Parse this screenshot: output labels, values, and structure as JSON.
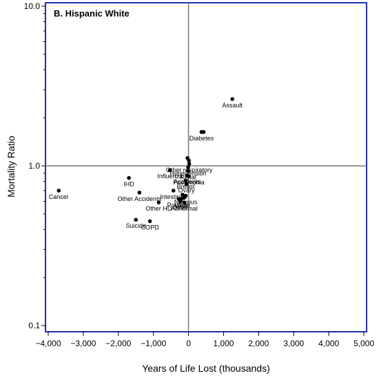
{
  "chart_data": {
    "type": "scatter",
    "title": "B. Hispanic White",
    "xlabel": "Years of Life Lost (thousands)",
    "ylabel": "Mortality Ratio",
    "xlim": [
      -4000,
      5000
    ],
    "ylim": [
      0.1,
      10.0
    ],
    "yscale": "log",
    "xticks": [
      -4000,
      -3000,
      -2000,
      -1000,
      0,
      1000,
      2000,
      3000,
      4000,
      5000
    ],
    "xtick_labels": [
      "−4,000",
      "−3,000",
      "−2,000",
      "−1,000",
      "0",
      "1,000",
      "2,000",
      "3,000",
      "4,000",
      "5,000"
    ],
    "yticks": [
      0.1,
      1.0,
      10.0
    ],
    "ytick_labels": [
      "0.1",
      "1.0",
      "10.0"
    ],
    "reference_lines": {
      "x": 0,
      "y": 1.0
    },
    "colors": {
      "frame": "#1f2fa8",
      "points": "#000000",
      "reference": "#777777"
    },
    "points": [
      {
        "label": "Assault",
        "x": 1250,
        "y": 2.62
      },
      {
        "label": "Diabetes",
        "x": 370,
        "y": 1.63
      },
      {
        "label": "",
        "x": 430,
        "y": 1.63
      },
      {
        "label": "",
        "x": -30,
        "y": 1.12
      },
      {
        "label": "",
        "x": 10,
        "y": 1.08
      },
      {
        "label": "Other respiratory",
        "x": 20,
        "y": 1.03
      },
      {
        "label": "Hypertension",
        "x": -10,
        "y": 0.98
      },
      {
        "label": "Renal",
        "x": -10,
        "y": 0.93
      },
      {
        "label": "Influenza",
        "x": -530,
        "y": 0.94
      },
      {
        "label": "Accidents",
        "x": -40,
        "y": 0.87
      },
      {
        "label": "Pneumonia",
        "x": 10,
        "y": 0.86
      },
      {
        "label": "IHD",
        "x": -1700,
        "y": 0.84
      },
      {
        "label": "Breast",
        "x": -80,
        "y": 0.81
      },
      {
        "label": "Ovary",
        "x": -60,
        "y": 0.77
      },
      {
        "label": "Intestines",
        "x": -430,
        "y": 0.7
      },
      {
        "label": "Cancer",
        "x": -3700,
        "y": 0.7
      },
      {
        "label": "Other Accidents",
        "x": -1400,
        "y": 0.68
      },
      {
        "label": "Nervous",
        "x": -80,
        "y": 0.65
      },
      {
        "label": "",
        "x": -170,
        "y": 0.66
      },
      {
        "label": "",
        "x": -130,
        "y": 0.63
      },
      {
        "label": "Prostate",
        "x": -280,
        "y": 0.62
      },
      {
        "label": "Other",
        "x": -230,
        "y": 0.6
      },
      {
        "label": "Liver",
        "x": -210,
        "y": 0.62
      },
      {
        "label": "Abnormal",
        "x": -120,
        "y": 0.59
      },
      {
        "label": "Other HD",
        "x": -850,
        "y": 0.59
      },
      {
        "label": "Suicide",
        "x": -1500,
        "y": 0.46
      },
      {
        "label": "COPD",
        "x": -1100,
        "y": 0.45
      }
    ]
  }
}
